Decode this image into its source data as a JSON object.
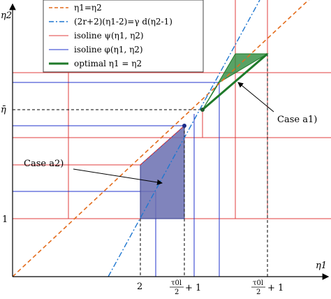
{
  "axes": {
    "x_label": "η1",
    "y_label": "η2"
  },
  "ticks": {
    "x": [
      {
        "id": "two",
        "main": "2"
      },
      {
        "id": "tau_a",
        "num": "τ0l",
        "den": "2",
        "suffix": "+ 1"
      },
      {
        "id": "tau_b",
        "num": "τ0l",
        "den": "2",
        "suffix": "+ 1"
      }
    ],
    "y": [
      {
        "id": "one",
        "main": "1"
      },
      {
        "id": "etabar",
        "main": "η̄"
      }
    ]
  },
  "legend": {
    "items": [
      {
        "id": "diag",
        "label": "η1=η2",
        "color": "#e36c1c",
        "style": "dashed"
      },
      {
        "id": "constraint",
        "label": "(2r+2)(η1-2)=γ d(η2-1)",
        "color": "#1f77d0",
        "style": "dashdot"
      },
      {
        "id": "psi",
        "label": "isoline ψ(η1, η2)",
        "color": "#e03c3c",
        "style": "solid"
      },
      {
        "id": "phi",
        "label": "isoline φ(η1, η2)",
        "color": "#2233cc",
        "style": "solid"
      },
      {
        "id": "optimal",
        "label": "optimal η1 = η2",
        "color": "#1f7a2a",
        "style": "thick"
      }
    ]
  },
  "annotations": {
    "case_a1": "Case a1)",
    "case_a2": "Case a2)"
  },
  "colors": {
    "region_a2": "#6a6fb0",
    "region_a1": "#2e8b3e",
    "axis": "#000000"
  }
}
